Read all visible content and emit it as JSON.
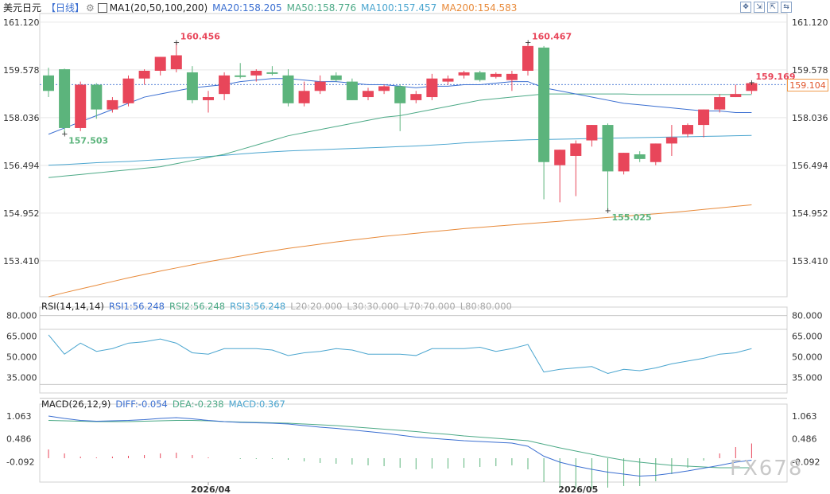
{
  "header": {
    "symbol": "美元日元",
    "period": "【日线】",
    "indicator": "MA1(20,50,100,200)",
    "ma20": "MA20:158.205",
    "ma50": "MA50:158.776",
    "ma100": "MA100:157.457",
    "ma200": "MA200:154.583"
  },
  "rsi_header": {
    "indicator": "RSI(14,14,14)",
    "rsi1": "RSI1:56.248",
    "rsi2": "RSI2:56.248",
    "rsi3": "RSI3:56.248",
    "l20": "L20:20.000",
    "l30": "L30:30.000",
    "l70": "L70:70.000",
    "l80": "L80:80.000"
  },
  "macd_header": {
    "indicator": "MACD(26,12,9)",
    "diff": "DIFF:-0.054",
    "dea": "DEA:-0.238",
    "macd": "MACD:0.367"
  },
  "current_price": "159.104",
  "watermark": "FX678",
  "colors": {
    "up": "#e8465a",
    "down": "#5cb47c",
    "ma20": "#3b6fd1",
    "ma50": "#4daa87",
    "ma100": "#4aa5cf",
    "ma200": "#e88a3a",
    "grid": "#d0d0d0"
  },
  "chart_data": {
    "type": "candlestick",
    "price_axis": {
      "ticks": [
        "161.120",
        "159.578",
        "158.036",
        "156.494",
        "154.952",
        "153.410"
      ],
      "range": [
        152.25,
        161.4
      ]
    },
    "x_labels": [
      {
        "label": "2026/04",
        "index": 10
      },
      {
        "label": "2026/05",
        "index": 33
      }
    ],
    "annotations": [
      {
        "text": "160.456",
        "index": 8,
        "value": 160.456,
        "color": "up"
      },
      {
        "text": "157.503",
        "index": 1,
        "value": 157.503,
        "color": "down"
      },
      {
        "text": "160.467",
        "index": 30,
        "value": 160.467,
        "color": "up"
      },
      {
        "text": "155.025",
        "index": 35,
        "value": 155.025,
        "color": "down"
      },
      {
        "text": "159.169",
        "index": 44,
        "value": 159.169,
        "color": "up"
      }
    ],
    "candles": [
      {
        "o": 159.4,
        "h": 159.65,
        "l": 158.7,
        "c": 158.9
      },
      {
        "o": 159.6,
        "h": 159.62,
        "l": 157.5,
        "c": 157.7
      },
      {
        "o": 157.7,
        "h": 159.2,
        "l": 157.6,
        "c": 159.1
      },
      {
        "o": 159.1,
        "h": 159.15,
        "l": 158.0,
        "c": 158.3
      },
      {
        "o": 158.3,
        "h": 158.7,
        "l": 158.2,
        "c": 158.6
      },
      {
        "o": 158.5,
        "h": 159.4,
        "l": 158.4,
        "c": 159.3
      },
      {
        "o": 159.3,
        "h": 159.6,
        "l": 159.1,
        "c": 159.55
      },
      {
        "o": 159.55,
        "h": 160.0,
        "l": 159.4,
        "c": 160.0
      },
      {
        "o": 159.6,
        "h": 160.45,
        "l": 159.5,
        "c": 160.05
      },
      {
        "o": 159.5,
        "h": 159.7,
        "l": 158.5,
        "c": 158.6
      },
      {
        "o": 158.6,
        "h": 158.9,
        "l": 158.2,
        "c": 158.7
      },
      {
        "o": 158.8,
        "h": 159.5,
        "l": 158.6,
        "c": 159.4
      },
      {
        "o": 159.4,
        "h": 159.8,
        "l": 159.3,
        "c": 159.35
      },
      {
        "o": 159.4,
        "h": 159.6,
        "l": 159.2,
        "c": 159.55
      },
      {
        "o": 159.5,
        "h": 159.7,
        "l": 159.4,
        "c": 159.45
      },
      {
        "o": 159.4,
        "h": 159.6,
        "l": 158.4,
        "c": 158.5
      },
      {
        "o": 158.5,
        "h": 159.2,
        "l": 158.4,
        "c": 158.9
      },
      {
        "o": 158.9,
        "h": 159.4,
        "l": 158.8,
        "c": 159.2
      },
      {
        "o": 159.4,
        "h": 159.5,
        "l": 159.2,
        "c": 159.25
      },
      {
        "o": 159.2,
        "h": 159.3,
        "l": 158.6,
        "c": 158.6
      },
      {
        "o": 158.7,
        "h": 159.0,
        "l": 158.6,
        "c": 158.9
      },
      {
        "o": 158.9,
        "h": 159.1,
        "l": 158.8,
        "c": 159.05
      },
      {
        "o": 159.05,
        "h": 159.1,
        "l": 157.6,
        "c": 158.5
      },
      {
        "o": 158.6,
        "h": 158.9,
        "l": 158.5,
        "c": 158.8
      },
      {
        "o": 158.7,
        "h": 159.45,
        "l": 158.6,
        "c": 159.3
      },
      {
        "o": 159.2,
        "h": 159.4,
        "l": 159.1,
        "c": 159.3
      },
      {
        "o": 159.4,
        "h": 159.55,
        "l": 159.3,
        "c": 159.5
      },
      {
        "o": 159.5,
        "h": 159.55,
        "l": 159.2,
        "c": 159.25
      },
      {
        "o": 159.35,
        "h": 159.5,
        "l": 159.3,
        "c": 159.45
      },
      {
        "o": 159.25,
        "h": 159.55,
        "l": 158.9,
        "c": 159.45
      },
      {
        "o": 159.55,
        "h": 160.47,
        "l": 159.4,
        "c": 160.35
      },
      {
        "o": 160.3,
        "h": 160.35,
        "l": 155.4,
        "c": 156.6
      },
      {
        "o": 156.5,
        "h": 157.0,
        "l": 155.3,
        "c": 157.0
      },
      {
        "o": 156.8,
        "h": 157.3,
        "l": 155.5,
        "c": 157.2
      },
      {
        "o": 157.3,
        "h": 157.8,
        "l": 157.1,
        "c": 157.8
      },
      {
        "o": 157.8,
        "h": 157.85,
        "l": 155.03,
        "c": 156.3
      },
      {
        "o": 156.3,
        "h": 156.9,
        "l": 156.2,
        "c": 156.9
      },
      {
        "o": 156.85,
        "h": 156.95,
        "l": 156.6,
        "c": 156.7
      },
      {
        "o": 156.6,
        "h": 157.2,
        "l": 156.5,
        "c": 157.2
      },
      {
        "o": 157.2,
        "h": 157.8,
        "l": 156.8,
        "c": 157.4
      },
      {
        "o": 157.5,
        "h": 157.85,
        "l": 157.4,
        "c": 157.8
      },
      {
        "o": 157.8,
        "h": 158.3,
        "l": 157.4,
        "c": 158.3
      },
      {
        "o": 158.3,
        "h": 158.8,
        "l": 158.2,
        "c": 158.7
      },
      {
        "o": 158.7,
        "h": 159.1,
        "l": 158.7,
        "c": 158.8
      },
      {
        "o": 158.9,
        "h": 159.17,
        "l": 158.8,
        "c": 159.15
      }
    ],
    "ma20": [
      157.5,
      157.7,
      157.9,
      158.1,
      158.3,
      158.5,
      158.7,
      158.8,
      158.9,
      159.0,
      159.05,
      159.1,
      159.2,
      159.25,
      159.3,
      159.3,
      159.25,
      159.2,
      159.2,
      159.15,
      159.1,
      159.1,
      159.05,
      159.0,
      159.05,
      159.05,
      159.1,
      159.1,
      159.15,
      159.2,
      159.2,
      159.0,
      158.9,
      158.8,
      158.7,
      158.6,
      158.5,
      158.45,
      158.4,
      158.35,
      158.3,
      158.25,
      158.25,
      158.2,
      158.2
    ],
    "ma50": [
      156.1,
      156.15,
      156.2,
      156.25,
      156.3,
      156.35,
      156.4,
      156.45,
      156.55,
      156.65,
      156.75,
      156.85,
      157.0,
      157.15,
      157.3,
      157.45,
      157.55,
      157.65,
      157.75,
      157.85,
      157.95,
      158.05,
      158.1,
      158.2,
      158.3,
      158.4,
      158.5,
      158.6,
      158.65,
      158.7,
      158.75,
      158.8,
      158.8,
      158.8,
      158.8,
      158.8,
      158.8,
      158.78,
      158.78,
      158.78,
      158.78,
      158.78,
      158.78,
      158.78,
      158.78
    ],
    "ma100": [
      156.5,
      156.52,
      156.55,
      156.58,
      156.6,
      156.62,
      156.65,
      156.68,
      156.72,
      156.75,
      156.78,
      156.82,
      156.86,
      156.9,
      156.93,
      156.96,
      156.98,
      157.0,
      157.02,
      157.04,
      157.06,
      157.08,
      157.1,
      157.12,
      157.15,
      157.18,
      157.22,
      157.25,
      157.28,
      157.3,
      157.32,
      157.33,
      157.34,
      157.35,
      157.36,
      157.37,
      157.38,
      157.39,
      157.4,
      157.41,
      157.42,
      157.43,
      157.44,
      157.45,
      157.46
    ],
    "ma200": [
      152.25,
      152.38,
      152.5,
      152.62,
      152.74,
      152.86,
      152.97,
      153.08,
      153.18,
      153.28,
      153.38,
      153.47,
      153.56,
      153.65,
      153.73,
      153.81,
      153.88,
      153.95,
      154.02,
      154.08,
      154.14,
      154.2,
      154.25,
      154.3,
      154.35,
      154.4,
      154.45,
      154.49,
      154.53,
      154.57,
      154.61,
      154.65,
      154.69,
      154.73,
      154.77,
      154.81,
      154.85,
      154.89,
      154.93,
      154.97,
      155.02,
      155.07,
      155.12,
      155.17,
      155.22
    ],
    "rsi": {
      "ticks": [
        "80.000",
        "65.000",
        "50.000",
        "35.000"
      ],
      "range": [
        25,
        85
      ],
      "lines": [
        80,
        70,
        30,
        20
      ],
      "values": [
        66,
        52,
        60,
        54,
        56,
        60,
        61,
        63,
        60,
        53,
        52,
        56,
        56,
        56,
        55,
        51,
        53,
        54,
        56,
        55,
        52,
        52,
        52,
        51,
        56,
        56,
        56,
        57,
        54,
        56,
        59,
        39,
        41,
        42,
        43,
        38,
        41,
        40,
        42,
        45,
        47,
        49,
        52,
        53,
        56
      ]
    },
    "macd": {
      "ticks": [
        "1.063",
        "0.486",
        "-0.092"
      ],
      "range": [
        -0.6,
        1.3
      ],
      "diff": [
        1.06,
        1.0,
        0.95,
        0.93,
        0.94,
        0.95,
        0.97,
        1.0,
        1.02,
        0.99,
        0.95,
        0.92,
        0.9,
        0.89,
        0.88,
        0.86,
        0.82,
        0.78,
        0.75,
        0.71,
        0.67,
        0.63,
        0.58,
        0.53,
        0.5,
        0.47,
        0.44,
        0.42,
        0.4,
        0.38,
        0.3,
        0.05,
        -0.1,
        -0.2,
        -0.28,
        -0.35,
        -0.4,
        -0.45,
        -0.43,
        -0.38,
        -0.32,
        -0.25,
        -0.18,
        -0.1,
        -0.05
      ],
      "dea": [
        0.95,
        0.94,
        0.93,
        0.92,
        0.92,
        0.92,
        0.93,
        0.94,
        0.95,
        0.95,
        0.94,
        0.92,
        0.91,
        0.9,
        0.89,
        0.88,
        0.86,
        0.84,
        0.82,
        0.79,
        0.76,
        0.73,
        0.7,
        0.67,
        0.63,
        0.6,
        0.56,
        0.53,
        0.5,
        0.47,
        0.44,
        0.35,
        0.26,
        0.18,
        0.1,
        0.02,
        -0.05,
        -0.1,
        -0.14,
        -0.18,
        -0.2,
        -0.22,
        -0.24,
        -0.24,
        -0.24
      ],
      "hist": [
        0.22,
        0.12,
        0.04,
        0.02,
        0.04,
        0.06,
        0.08,
        0.12,
        0.14,
        0.08,
        0.02,
        0.0,
        -0.02,
        -0.02,
        -0.02,
        -0.04,
        -0.08,
        -0.12,
        -0.14,
        -0.16,
        -0.18,
        -0.2,
        -0.24,
        -0.28,
        -0.26,
        -0.26,
        -0.24,
        -0.22,
        -0.2,
        -0.18,
        -0.28,
        -0.6,
        -0.72,
        -0.76,
        -0.76,
        -0.74,
        -0.7,
        -0.7,
        -0.58,
        -0.4,
        -0.24,
        -0.06,
        0.12,
        0.28,
        0.37
      ]
    }
  }
}
